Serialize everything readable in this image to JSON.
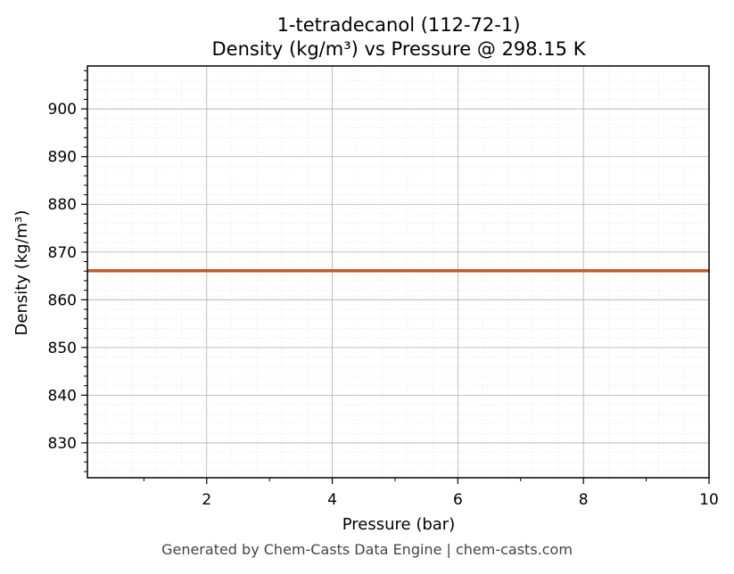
{
  "chart_data": {
    "type": "line",
    "title_line1": "1-tetradecanol (112-72-1)",
    "title_line2": "Density (kg/m³) vs Pressure @ 298.15 K",
    "xlabel": "Pressure (bar)",
    "ylabel": "Density (kg/m³)",
    "xlim": [
      0.1,
      10
    ],
    "ylim": [
      822.7,
      909.0
    ],
    "x_ticks": [
      2,
      4,
      6,
      8,
      10
    ],
    "y_ticks": [
      830,
      840,
      850,
      860,
      870,
      880,
      890,
      900
    ],
    "grid": true,
    "minor_grid": true,
    "series": [
      {
        "color": "#c8562a",
        "x": [
          0.1,
          1,
          2,
          3,
          4,
          5,
          6,
          7,
          8,
          9,
          10
        ],
        "y": [
          866.1,
          866.1,
          866.1,
          866.1,
          866.1,
          866.1,
          866.1,
          866.1,
          866.1,
          866.1,
          866.1
        ]
      }
    ]
  },
  "footer": "Generated by Chem-Casts Data Engine | chem-casts.com"
}
